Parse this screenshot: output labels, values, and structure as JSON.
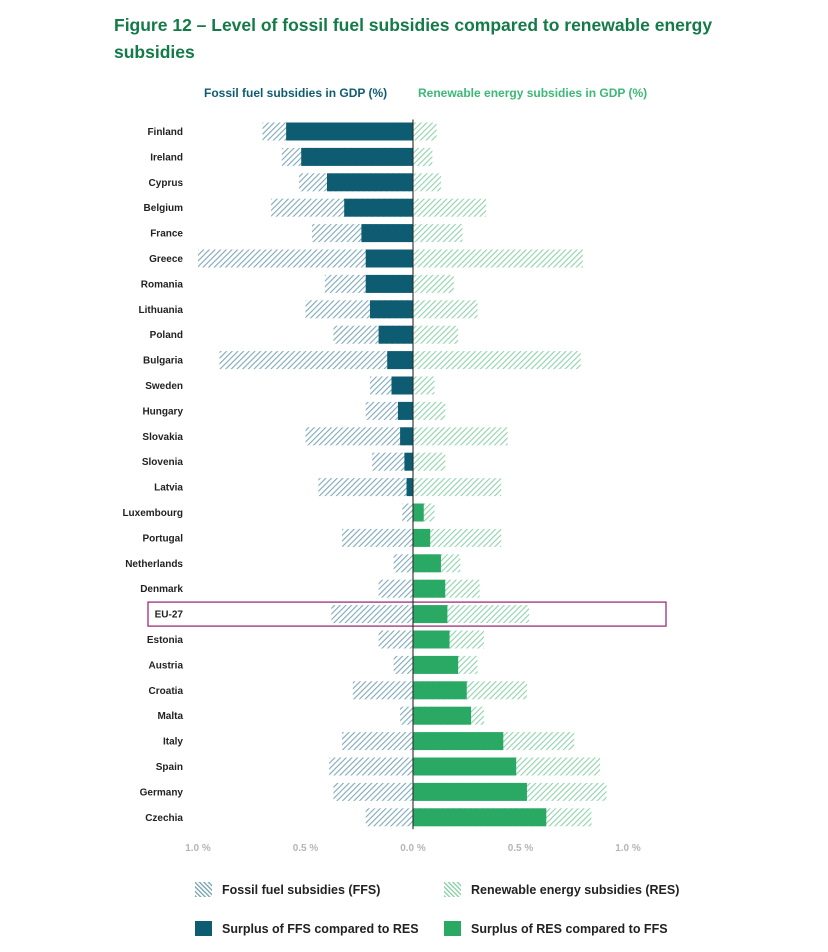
{
  "title": "Figure 12 – Level of fossil fuel subsidies compared to renewable energy subsidies",
  "colors": {
    "title": "#137a48",
    "ffs_header": "#0e5c72",
    "res_header": "#3cb877",
    "surplus_ffs": "#0e5c72",
    "surplus_res": "#2aa965",
    "ffs_hatch": "#7ea9b9",
    "res_hatch": "#8fd3ab",
    "highlight": "#a02d78"
  },
  "chart_data": {
    "type": "bar",
    "title": "Figure 12 – Level of fossil fuel subsidies compared to renewable energy subsidies",
    "left_header": "Fossil fuel subsidies in GDP (%)",
    "right_header": "Renewable energy subsidies in GDP (%)",
    "xlim": [
      -1.0,
      1.0
    ],
    "x_ticks": [
      {
        "value": -1.0,
        "label": "1.0 %"
      },
      {
        "value": -0.5,
        "label": "0.5 %"
      },
      {
        "value": 0.0,
        "label": "0.0 %"
      },
      {
        "value": 0.5,
        "label": "0.5 %"
      },
      {
        "value": 1.0,
        "label": "1.0 %"
      }
    ],
    "highlight": "EU-27",
    "categories": [
      "Finland",
      "Ireland",
      "Cyprus",
      "Belgium",
      "France",
      "Greece",
      "Romania",
      "Lithuania",
      "Poland",
      "Bulgaria",
      "Sweden",
      "Hungary",
      "Slovakia",
      "Slovenia",
      "Latvia",
      "Luxembourg",
      "Portugal",
      "Netherlands",
      "Denmark",
      "EU-27",
      "Estonia",
      "Austria",
      "Croatia",
      "Malta",
      "Italy",
      "Spain",
      "Germany",
      "Czechia"
    ],
    "series": [
      {
        "name": "Fossil fuel subsidies (FFS)",
        "values": [
          0.7,
          0.61,
          0.53,
          0.66,
          0.47,
          1.0,
          0.41,
          0.5,
          0.37,
          0.9,
          0.2,
          0.22,
          0.5,
          0.19,
          0.44,
          0.05,
          0.33,
          0.09,
          0.16,
          0.38,
          0.16,
          0.09,
          0.28,
          0.06,
          0.33,
          0.39,
          0.37,
          0.22
        ]
      },
      {
        "name": "Renewable energy subsidies (RES)",
        "values": [
          0.11,
          0.09,
          0.13,
          0.34,
          0.23,
          0.79,
          0.19,
          0.3,
          0.21,
          0.78,
          0.1,
          0.15,
          0.44,
          0.15,
          0.41,
          0.1,
          0.41,
          0.22,
          0.31,
          0.54,
          0.33,
          0.3,
          0.53,
          0.33,
          0.75,
          0.87,
          0.9,
          0.83
        ]
      },
      {
        "name": "Surplus of FFS compared to RES",
        "values": [
          0.59,
          0.52,
          0.4,
          0.32,
          0.24,
          0.22,
          0.22,
          0.2,
          0.16,
          0.12,
          0.1,
          0.07,
          0.06,
          0.04,
          0.03,
          0,
          0,
          0,
          0,
          0,
          0,
          0,
          0,
          0,
          0,
          0,
          0,
          0
        ]
      },
      {
        "name": "Surplus of RES compared to FFS",
        "values": [
          0,
          0,
          0,
          0,
          0,
          0,
          0,
          0,
          0,
          0,
          0,
          0,
          0,
          0,
          0,
          0.05,
          0.08,
          0.13,
          0.15,
          0.16,
          0.17,
          0.21,
          0.25,
          0.27,
          0.42,
          0.48,
          0.53,
          0.62
        ]
      }
    ]
  },
  "legend": {
    "ffs": "Fossil fuel subsidies (FFS)",
    "res": "Renewable energy subsidies (RES)",
    "surplus_ffs": "Surplus of FFS compared to RES",
    "surplus_res": "Surplus of RES compared to FFS"
  }
}
